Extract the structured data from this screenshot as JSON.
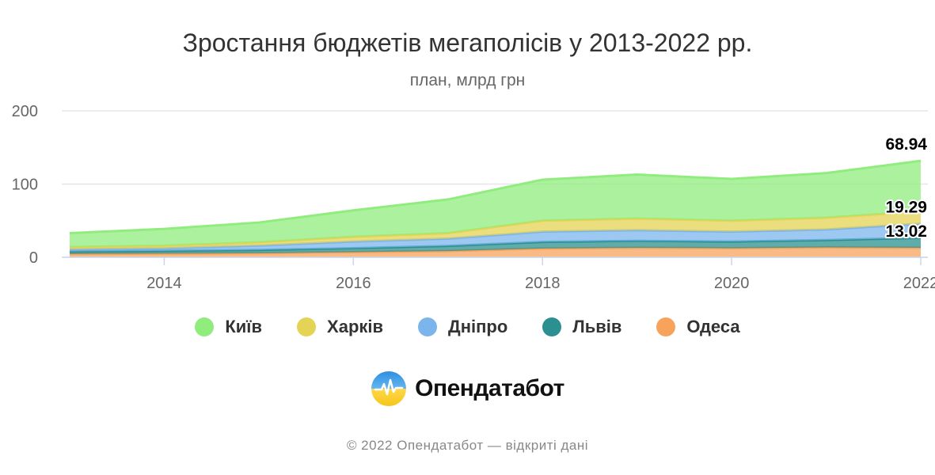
{
  "title": "Зростання бюджетів мегаполісів у 2013-2022 рр.",
  "subtitle": "план, млрд грн",
  "brand": {
    "name": "Опендатабот"
  },
  "footer": "© 2022 Опендатабот — відкриті дані",
  "chart_data": {
    "type": "area",
    "stacked": true,
    "title": "Зростання бюджетів мегаполісів у 2013-2022 рр.",
    "subtitle": "план, млрд грн",
    "x": [
      2013,
      2014,
      2015,
      2016,
      2017,
      2018,
      2019,
      2020,
      2021,
      2022
    ],
    "x_ticks": [
      "2014",
      "2016",
      "2018",
      "2020",
      "2022"
    ],
    "y_ticks": [
      "0",
      "100",
      "200"
    ],
    "ylim": [
      0,
      200
    ],
    "xlim": [
      2013,
      2022
    ],
    "grid": true,
    "legend_position": "bottom",
    "series": [
      {
        "name": "Одеса",
        "color": "#f7a35c",
        "values": [
          4.5,
          5.0,
          5.5,
          7.0,
          8.5,
          12.0,
          13.0,
          12.5,
          13.5,
          13.02
        ]
      },
      {
        "name": "Львів",
        "color": "#2b908f",
        "values": [
          3.5,
          3.8,
          4.5,
          5.5,
          7.0,
          9.0,
          9.5,
          9.0,
          10.0,
          13.5
        ]
      },
      {
        "name": "Дніпро",
        "color": "#7cb5ec",
        "values": [
          3.0,
          3.5,
          6.0,
          9.0,
          10.0,
          14.0,
          14.5,
          13.5,
          14.5,
          19.29
        ]
      },
      {
        "name": "Харків",
        "color": "#e4d354",
        "values": [
          3.0,
          3.5,
          4.5,
          6.5,
          7.5,
          15.0,
          16.0,
          15.0,
          16.0,
          17.0
        ]
      },
      {
        "name": "Київ",
        "color": "#90ed7d",
        "values": [
          19.0,
          23.0,
          27.0,
          36.0,
          46.0,
          56.0,
          60.0,
          57.0,
          61.0,
          68.94
        ]
      }
    ],
    "data_labels": [
      {
        "series": "Київ",
        "x": 2022,
        "text": "68.94"
      },
      {
        "series": "Дніпро",
        "x": 2022,
        "text": "19.29"
      },
      {
        "series": "Одеса",
        "x": 2022,
        "text": "13.02"
      }
    ],
    "legend": [
      "Київ",
      "Харків",
      "Дніпро",
      "Львів",
      "Одеса"
    ]
  }
}
